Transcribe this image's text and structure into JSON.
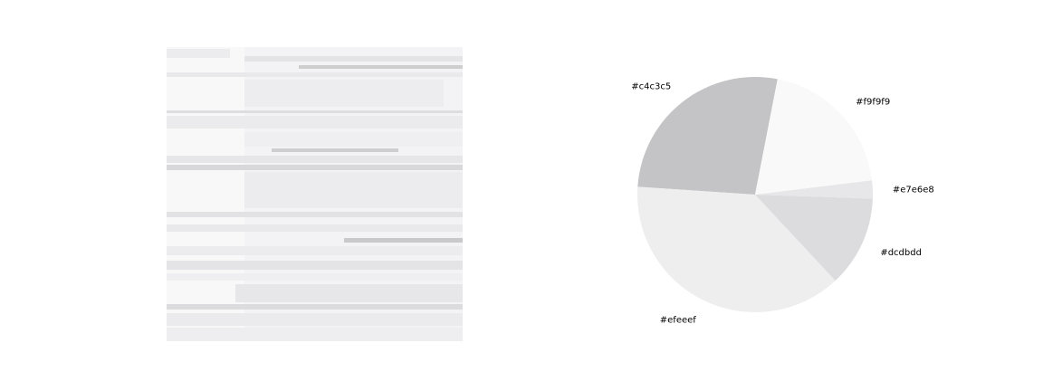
{
  "image_panel": {
    "description_colors": [
      "#f7f6f7",
      "#ecebed",
      "#dcdbdd",
      "#c4c3c5",
      "#efeeef",
      "#f9f9f9"
    ]
  },
  "chart_data": {
    "type": "pie",
    "title": "",
    "start_angle_deg": 79,
    "direction": "counterclockwise",
    "slices": [
      {
        "label": "#c4c3c5",
        "color": "#c4c3c5",
        "value": 27.0
      },
      {
        "label": "#efeeef",
        "color": "#efeeef",
        "value": 38.0
      },
      {
        "label": "#dcdbdd",
        "color": "#dcdbdd",
        "value": 12.5
      },
      {
        "label": "#e7e6e8",
        "color": "#e7e6e8",
        "value": 2.5
      },
      {
        "label": "#f9f9f9",
        "color": "#f9f9f9",
        "value": 20.0
      }
    ]
  }
}
